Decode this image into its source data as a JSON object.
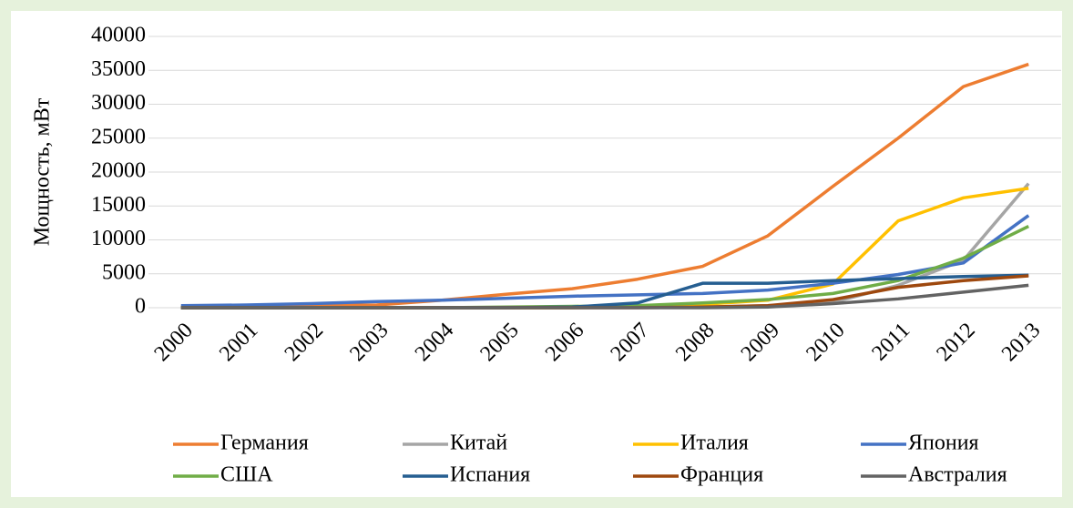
{
  "chart_data": {
    "type": "line",
    "y_label": "Мощность, мВт",
    "categories": [
      "2000",
      "2001",
      "2002",
      "2003",
      "2004",
      "2005",
      "2006",
      "2007",
      "2008",
      "2009",
      "2010",
      "2011",
      "2012",
      "2013"
    ],
    "series": [
      {
        "name": "Германия",
        "color": "#ED7D31",
        "values": [
          100,
          200,
          300,
          400,
          1100,
          2000,
          2800,
          4200,
          6100,
          10600,
          17900,
          25000,
          32600,
          35900
        ]
      },
      {
        "name": "Китай",
        "color": "#A5A5A5",
        "values": [
          0,
          0,
          0,
          0,
          0,
          0,
          0,
          100,
          100,
          300,
          800,
          3300,
          7000,
          18300
        ]
      },
      {
        "name": "Италия",
        "color": "#FFC000",
        "values": [
          0,
          0,
          0,
          0,
          0,
          0,
          0,
          100,
          500,
          1100,
          3500,
          12800,
          16200,
          17600
        ]
      },
      {
        "name": "Япония",
        "color": "#4472C4",
        "values": [
          300,
          400,
          600,
          900,
          1100,
          1400,
          1700,
          1900,
          2100,
          2600,
          3600,
          4900,
          6600,
          13600
        ]
      },
      {
        "name": "США",
        "color": "#70AD47",
        "values": [
          0,
          0,
          0,
          0,
          0,
          100,
          200,
          300,
          700,
          1200,
          2100,
          4000,
          7300,
          12000
        ]
      },
      {
        "name": "Испания",
        "color": "#255E91",
        "values": [
          0,
          0,
          0,
          0,
          0,
          0,
          100,
          700,
          3600,
          3600,
          4000,
          4300,
          4600,
          4800
        ]
      },
      {
        "name": "Франция",
        "color": "#9E480E",
        "values": [
          0,
          0,
          0,
          0,
          0,
          0,
          0,
          0,
          100,
          300,
          1200,
          3000,
          4000,
          4700
        ]
      },
      {
        "name": "Австралия",
        "color": "#636363",
        "values": [
          0,
          0,
          0,
          0,
          0,
          0,
          0,
          0,
          0,
          100,
          600,
          1300,
          2300,
          3300
        ]
      }
    ],
    "ylim": [
      0,
      40000
    ],
    "yticks": [
      0,
      5000,
      10000,
      15000,
      20000,
      25000,
      30000,
      35000,
      40000
    ],
    "grid": true,
    "legend": "bottom"
  }
}
